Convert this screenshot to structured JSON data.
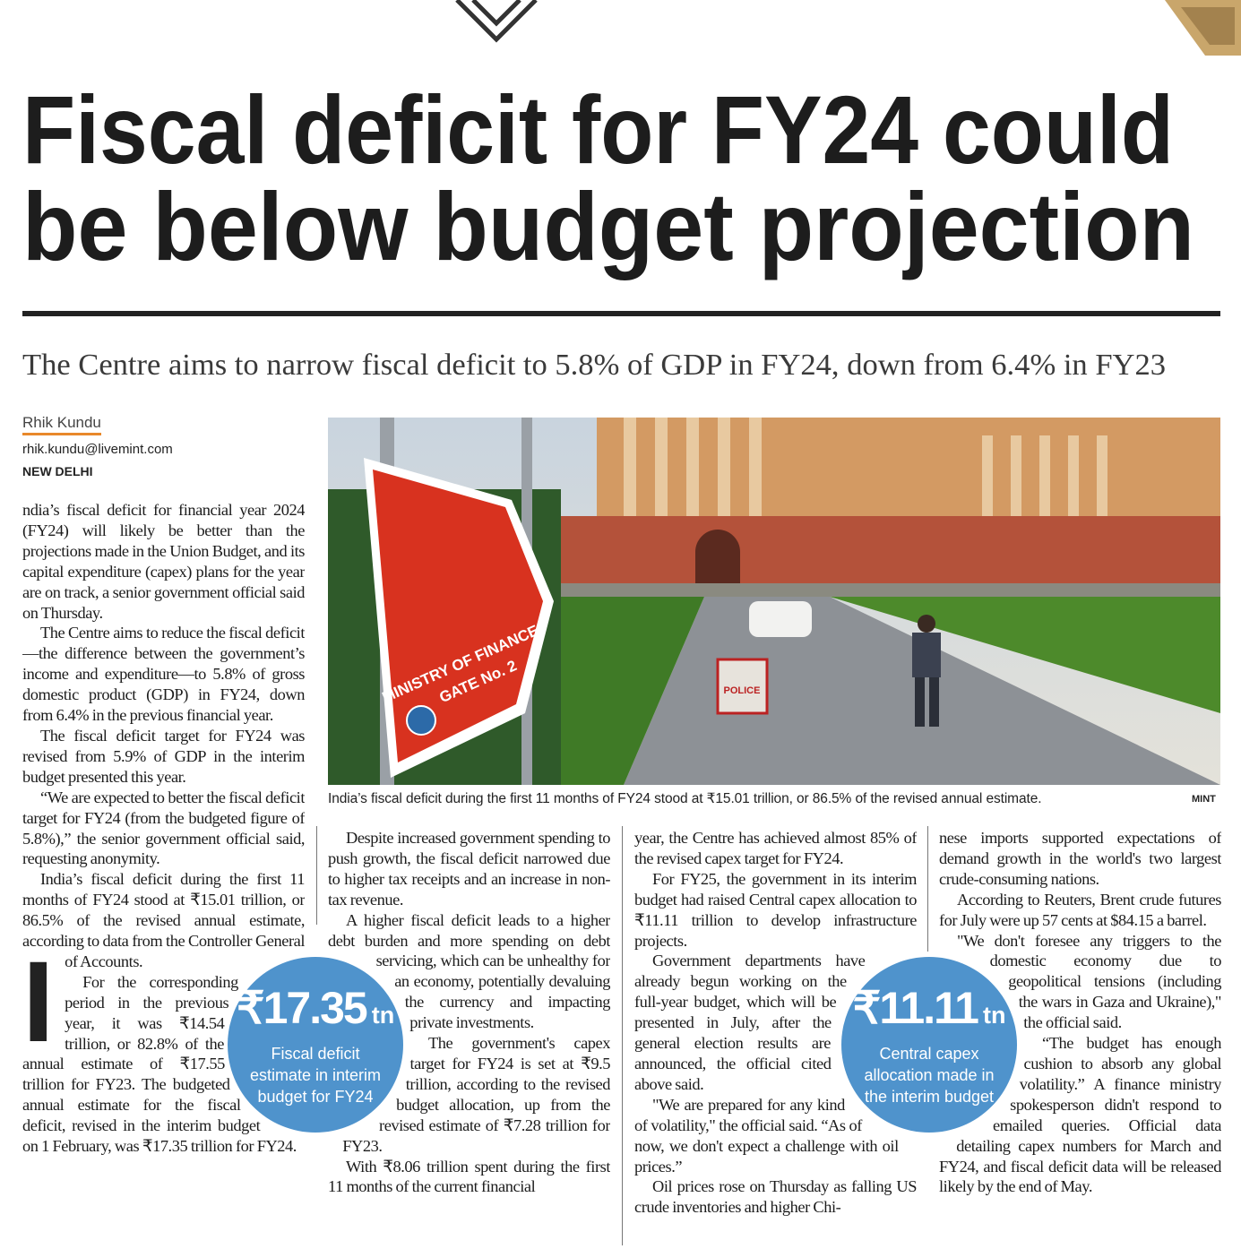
{
  "headline": [
    "Fiscal deficit for FY24 could",
    "be below budget projection"
  ],
  "deck": "The Centre aims to narrow fiscal deficit to 5.8% of GDP in FY24, down from 6.4% in FY23",
  "byline": {
    "author": "Rhik Kundu",
    "email": "rhik.kundu@livemint.com",
    "dateline": "NEW DELHI"
  },
  "photo": {
    "sign": [
      "MINISTRY OF FINANCE",
      "GATE No. 2"
    ],
    "barrier": "POLICE",
    "caption": "India’s fiscal deficit during the first 11 months of FY24 stood at ₹15.01 trillion, or 86.5% of the revised annual estimate.",
    "credit": "MINT"
  },
  "article": {
    "drop_cap": "I",
    "columns": [
      [
        "ndia’s fiscal deficit for financial year 2024 (FY24) will likely be better than the projections made in the Union Budget, and its capital expenditure (capex) plans for the year are on track, a senior government official said on Thursday.",
        "The Centre aims to reduce the fiscal deficit—the difference between the government’s income and expenditure—to 5.8% of gross domestic product (GDP) in FY24, down from 6.4% in the previous financial year.",
        "The fiscal deficit target for FY24 was revised from 5.9% of GDP in the interim budget presented this year.",
        "“We are expected to better the fiscal deficit target for FY24 (from the budgeted figure of 5.8%),” the senior government official said, requesting anonymity.",
        "India’s fiscal deficit during the first 11 months of FY24 stood at ₹15.01 trillion, or 86.5% of the revised annual estimate, according to data from the Controller General of Accounts.",
        "For the corresponding period in the previous year, it was ₹14.54 trillion, or 82.8% of the annual estimate of ₹17.55 trillion for FY23. The budgeted annual estimate for the fiscal deficit, revised in the interim budget on 1 February, was ₹17.35 trillion for FY24."
      ],
      [
        "Despite increased government spending to push growth, the fiscal deficit narrowed due to higher tax receipts and an increase in non-tax revenue.",
        "A higher fiscal deficit leads to a higher debt burden and more spending on debt servicing, which can be unhealthy for an economy, potentially devaluing the currency and impacting private investments.",
        "The government's capex target for FY24 is set at ₹9.5 trillion, according to the revised budget allocation, up from the revised estimate of ₹7.28 trillion for FY23.",
        "With ₹8.06 trillion spent during the first 11 months of the current financial"
      ],
      [
        "year, the Centre has achieved almost 85% of the revised capex target for FY24.",
        "For FY25, the government in its interim budget had raised Central capex allocation to ₹11.11 trillion to develop infrastructure projects.",
        "Government departments have already begun working on the full-year budget, which will be presented in July, after the general election results are announced, the official cited above said.",
        "\"We are prepared for any kind of volatility,\" the official said. “As of now, we don't expect a challenge with oil prices.”",
        "Oil prices rose on Thursday as falling US crude inventories and higher Chi-"
      ],
      [
        "nese imports supported expectations of demand growth in the world's two largest crude-consuming nations.",
        "According to Reuters, Brent crude futures for July were up 57 cents at $84.15 a barrel.",
        "\"We don't foresee any triggers to the domestic economy due to geopolitical tensions (including the wars in Gaza and Ukraine),\" the official said.",
        "“The budget has enough cushion to absorb any global volatility.” A finance ministry spokesperson didn't respond to emailed queries. Official data detailing capex numbers for March and FY24, and fiscal deficit data will be released likely by the end of May."
      ]
    ]
  },
  "callouts": [
    {
      "figure": "₹17.35",
      "unit": "tn",
      "label": "Fiscal deficit estimate in interim budget for FY24"
    },
    {
      "figure": "₹11.11",
      "unit": "tn",
      "label": "Central capex allocation made in the interim budget"
    }
  ]
}
